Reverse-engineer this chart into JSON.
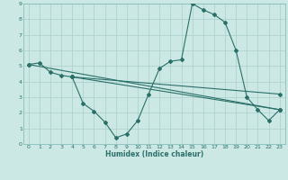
{
  "xlabel": "Humidex (Indice chaleur)",
  "bg_color": "#cce8e5",
  "line_color": "#2a7068",
  "grid_color": "#aacfcc",
  "spine_color": "#7ab8b2",
  "xlim": [
    -0.5,
    23.5
  ],
  "ylim": [
    0,
    9
  ],
  "xticks": [
    0,
    1,
    2,
    3,
    4,
    5,
    6,
    7,
    8,
    9,
    10,
    11,
    12,
    13,
    14,
    15,
    16,
    17,
    18,
    19,
    20,
    21,
    22,
    23
  ],
  "yticks": [
    0,
    1,
    2,
    3,
    4,
    5,
    6,
    7,
    8,
    9
  ],
  "series": [
    {
      "x": [
        0,
        1,
        2,
        3,
        4,
        5,
        6,
        7,
        8,
        9,
        10,
        11,
        12,
        13,
        14,
        15,
        16,
        17,
        18,
        19,
        20,
        21,
        22,
        23
      ],
      "y": [
        5.1,
        5.2,
        4.6,
        4.4,
        4.3,
        2.6,
        2.1,
        1.4,
        0.4,
        0.65,
        1.5,
        3.2,
        4.85,
        5.3,
        5.4,
        9.0,
        8.6,
        8.3,
        7.8,
        6.0,
        3.0,
        2.2,
        1.5,
        2.2
      ]
    },
    {
      "x": [
        0,
        23
      ],
      "y": [
        5.1,
        2.2
      ]
    },
    {
      "x": [
        4,
        23
      ],
      "y": [
        4.3,
        2.2
      ]
    },
    {
      "x": [
        4,
        23
      ],
      "y": [
        4.3,
        3.2
      ]
    }
  ]
}
